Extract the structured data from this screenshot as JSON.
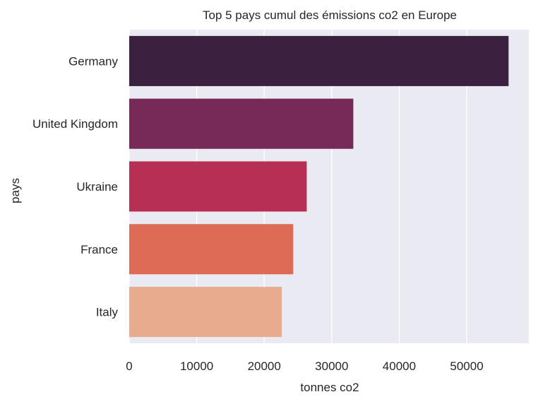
{
  "chart_data": {
    "type": "bar",
    "orientation": "horizontal",
    "title": "Top 5 pays cumul des émissions co2 en Europe",
    "xlabel": "tonnes co2",
    "ylabel": "pays",
    "categories": [
      "Germany",
      "United Kingdom",
      "Ukraine",
      "France",
      "Italy"
    ],
    "values": [
      56200,
      33200,
      26300,
      24300,
      22600
    ],
    "colors": [
      "#3c2040",
      "#772a58",
      "#b82f55",
      "#de6b56",
      "#e9ab8d"
    ],
    "xlim": [
      0,
      59200
    ],
    "xticks": [
      0,
      10000,
      20000,
      30000,
      40000,
      50000
    ],
    "xtick_labels": [
      "0",
      "10000",
      "20000",
      "30000",
      "40000",
      "50000"
    ],
    "grid": true,
    "background_color": "#eaeaf2",
    "grid_color": "#ffffff"
  }
}
